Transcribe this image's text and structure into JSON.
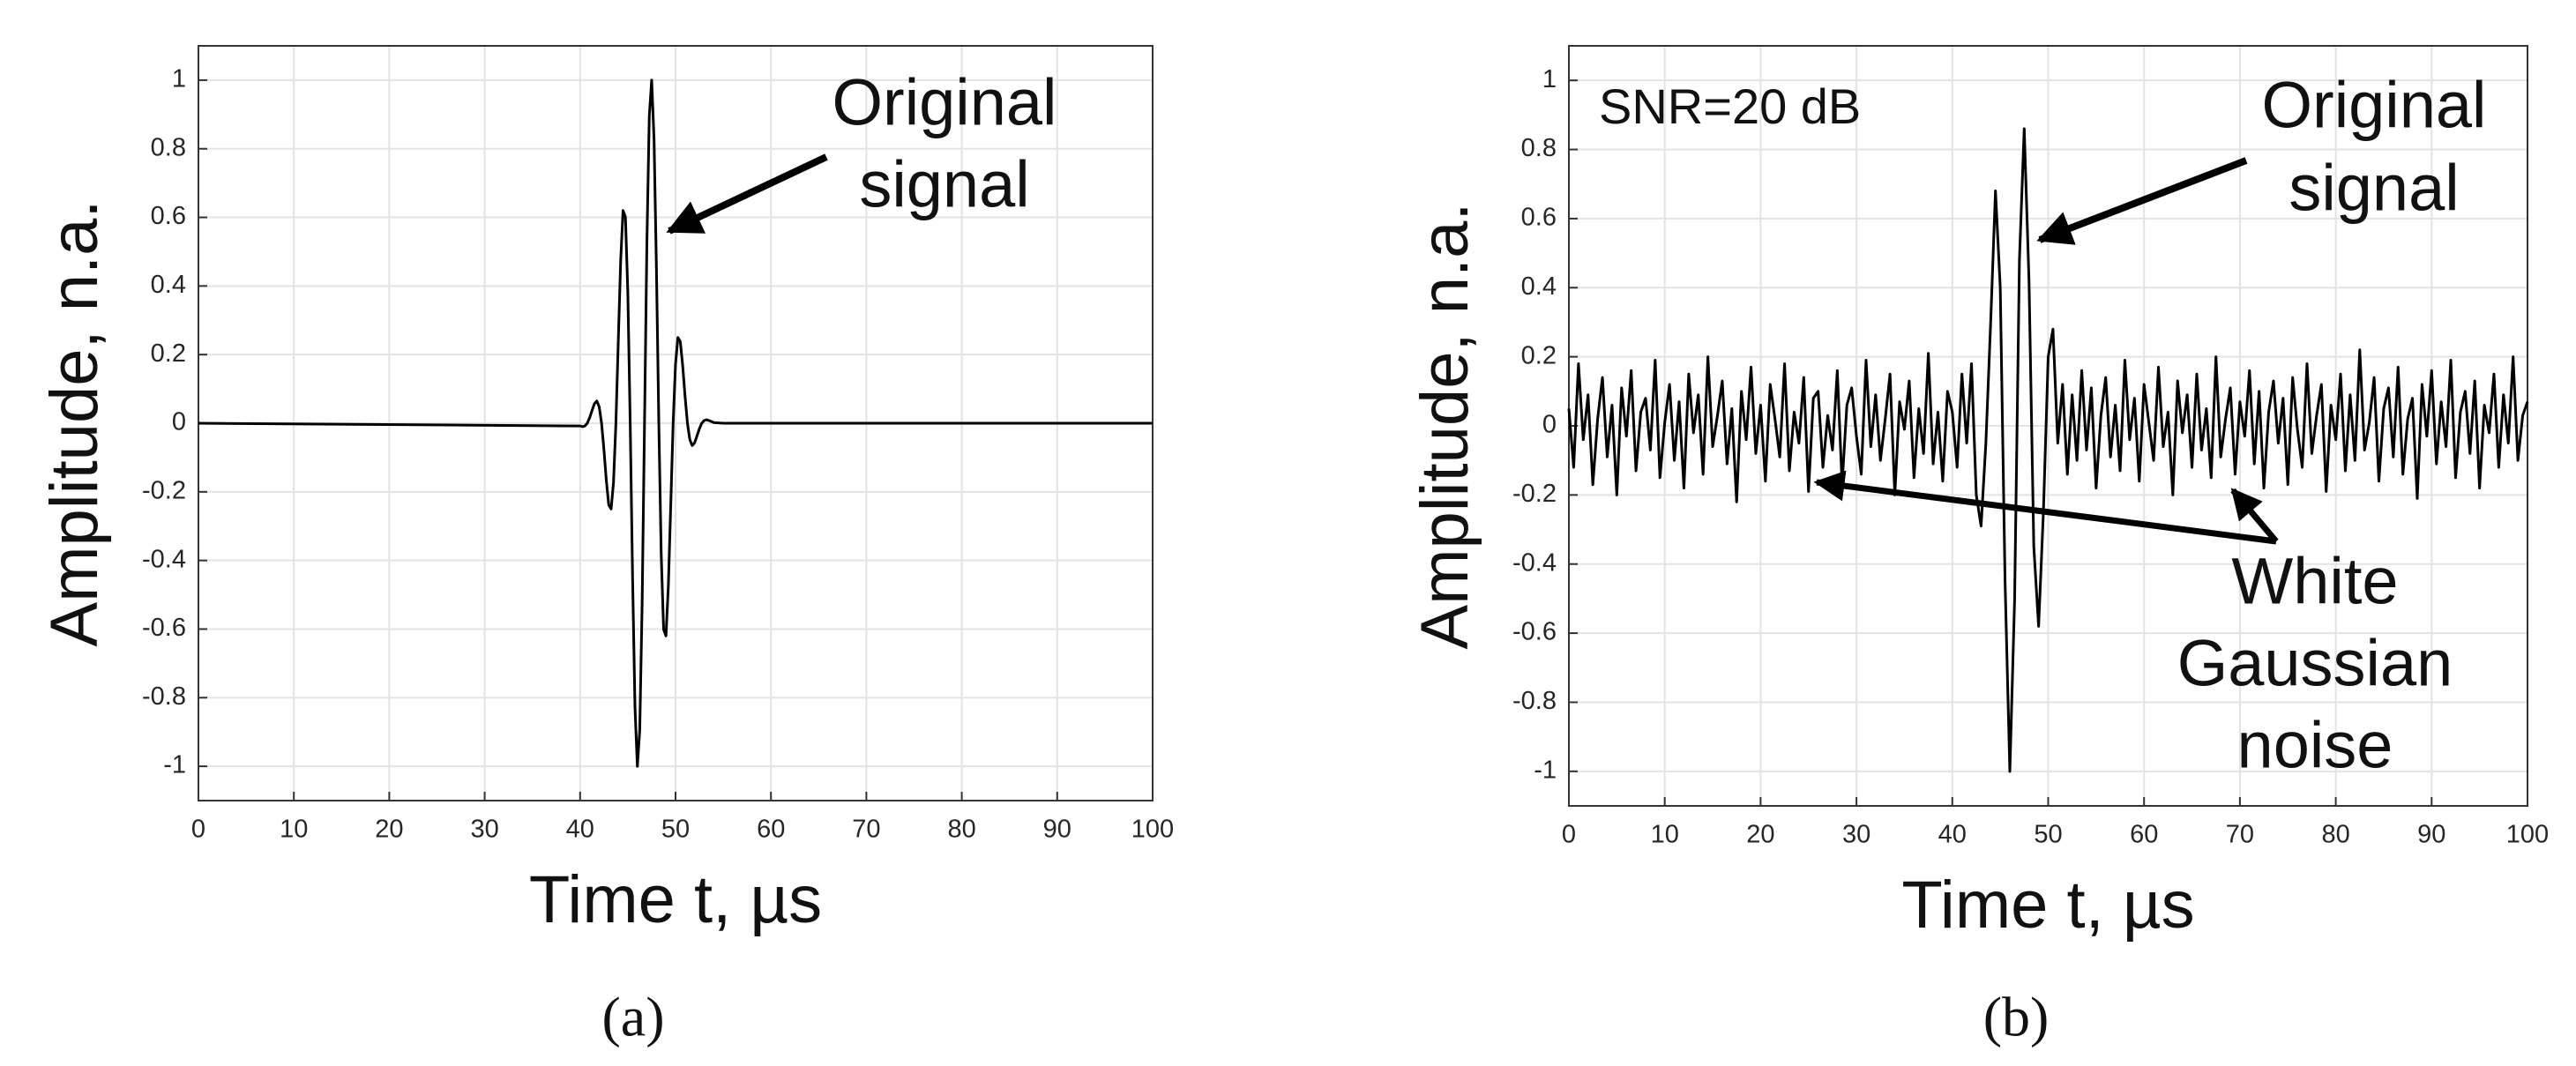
{
  "chart_data": [
    {
      "type": "line",
      "panel_label": "(a)",
      "xlabel": "Time t, µs",
      "ylabel": "Amplitude, n.a.",
      "annotation": [
        "Original",
        "signal"
      ],
      "xlim": [
        0,
        100
      ],
      "ylim": [
        -1.1,
        1.1
      ],
      "xticks": [
        0,
        10,
        20,
        30,
        40,
        50,
        60,
        70,
        80,
        90,
        100
      ],
      "yticks": [
        -1,
        -0.8,
        -0.6,
        -0.4,
        -0.2,
        0,
        0.2,
        0.4,
        0.6,
        0.8,
        1
      ],
      "grid": true,
      "color": "#000000",
      "x": [
        0,
        40,
        40.25,
        40.5,
        40.75,
        41,
        41.25,
        41.5,
        41.75,
        42,
        42.25,
        42.5,
        42.75,
        43,
        43.25,
        43.5,
        43.75,
        44,
        44.25,
        44.5,
        44.75,
        45,
        45.25,
        45.5,
        45.75,
        46,
        46.25,
        46.5,
        46.75,
        47,
        47.25,
        47.5,
        47.75,
        48,
        48.25,
        48.5,
        48.75,
        49,
        49.25,
        49.5,
        49.75,
        50,
        50.25,
        50.5,
        50.75,
        51,
        51.25,
        51.5,
        51.75,
        52,
        52.25,
        52.5,
        52.75,
        53,
        53.25,
        53.5,
        53.75,
        54,
        55,
        100
      ],
      "values": [
        0,
        -0.008,
        -0.01,
        -0.008,
        0,
        0.016,
        0.037,
        0.057,
        0.065,
        0.048,
        0,
        -0.078,
        -0.168,
        -0.238,
        -0.25,
        -0.173,
        0,
        0.238,
        0.473,
        0.62,
        0.601,
        0.383,
        0,
        -0.45,
        -0.827,
        -1,
        -0.895,
        -0.527,
        0,
        0.527,
        0.895,
        1,
        0.827,
        0.45,
        0,
        -0.383,
        -0.601,
        -0.62,
        -0.473,
        -0.238,
        0,
        0.173,
        0.25,
        0.238,
        0.168,
        0.078,
        0,
        -0.048,
        -0.065,
        -0.057,
        -0.037,
        -0.016,
        0,
        0.008,
        0.01,
        0.008,
        0.005,
        0.002,
        0,
        0
      ]
    },
    {
      "type": "line",
      "panel_label": "(b)",
      "xlabel": "Time t, µs",
      "ylabel": "Amplitude, n.a.",
      "annotation": [
        "Original",
        "signal"
      ],
      "snr_label": "SNR=20 dB",
      "noise_annotation": [
        "White",
        "Gaussian",
        "noise"
      ],
      "xlim": [
        0,
        100
      ],
      "ylim": [
        -1.1,
        1.1
      ],
      "xticks": [
        0,
        10,
        20,
        30,
        40,
        50,
        60,
        70,
        80,
        90,
        100
      ],
      "yticks": [
        -1,
        -0.8,
        -0.6,
        -0.4,
        -0.2,
        0,
        0.2,
        0.4,
        0.6,
        0.8,
        1
      ],
      "grid": true,
      "color": "#000000",
      "x": [
        0,
        0.5,
        1,
        1.5,
        2,
        2.5,
        3,
        3.5,
        4,
        4.5,
        5,
        5.5,
        6,
        6.5,
        7,
        7.5,
        8,
        8.5,
        9,
        9.5,
        10,
        10.5,
        11,
        11.5,
        12,
        12.5,
        13,
        13.5,
        14,
        14.5,
        15,
        15.5,
        16,
        16.5,
        17,
        17.5,
        18,
        18.5,
        19,
        19.5,
        20,
        20.5,
        21,
        21.5,
        22,
        22.5,
        23,
        23.5,
        24,
        24.5,
        25,
        25.5,
        26,
        26.5,
        27,
        27.5,
        28,
        28.5,
        29,
        29.5,
        30,
        30.5,
        31,
        31.5,
        32,
        32.5,
        33,
        33.5,
        34,
        34.5,
        35,
        35.5,
        36,
        36.5,
        37,
        37.5,
        38,
        38.5,
        39,
        39.5,
        40,
        40.5,
        41,
        41.5,
        42,
        42.5,
        43,
        43.5,
        44,
        44.5,
        45,
        45.5,
        46,
        46.5,
        47,
        47.5,
        48,
        48.5,
        49,
        49.5,
        50,
        50.5,
        51,
        51.5,
        52,
        52.5,
        53,
        53.5,
        54,
        54.5,
        55,
        55.5,
        56,
        56.5,
        57,
        57.5,
        58,
        58.5,
        59,
        59.5,
        60,
        60.5,
        61,
        61.5,
        62,
        62.5,
        63,
        63.5,
        64,
        64.5,
        65,
        65.5,
        66,
        66.5,
        67,
        67.5,
        68,
        68.5,
        69,
        69.5,
        70,
        70.5,
        71,
        71.5,
        72,
        72.5,
        73,
        73.5,
        74,
        74.5,
        75,
        75.5,
        76,
        76.5,
        77,
        77.5,
        78,
        78.5,
        79,
        79.5,
        80,
        80.5,
        81,
        81.5,
        82,
        82.5,
        83,
        83.5,
        84,
        84.5,
        85,
        85.5,
        86,
        86.5,
        87,
        87.5,
        88,
        88.5,
        89,
        89.5,
        90,
        90.5,
        91,
        91.5,
        92,
        92.5,
        93,
        93.5,
        94,
        94.5,
        95,
        95.5,
        96,
        96.5,
        97,
        97.5,
        98,
        98.5,
        99,
        99.5,
        100
      ],
      "values": [
        0.05,
        -0.12,
        0.18,
        -0.04,
        0.09,
        -0.17,
        0.02,
        0.14,
        -0.09,
        0.06,
        -0.2,
        0.11,
        -0.03,
        0.16,
        -0.13,
        0.04,
        0.08,
        -0.07,
        0.19,
        -0.15,
        0.01,
        0.12,
        -0.1,
        0.07,
        -0.18,
        0.15,
        -0.02,
        0.09,
        -0.14,
        0.2,
        -0.06,
        0.03,
        0.13,
        -0.11,
        0.05,
        -0.22,
        0.1,
        -0.04,
        0.17,
        -0.08,
        0.06,
        -0.16,
        0.12,
        0.02,
        -0.09,
        0.18,
        -0.13,
        0.04,
        -0.05,
        0.14,
        -0.19,
        0.08,
        0.1,
        -0.12,
        0.03,
        -0.07,
        0.16,
        -0.17,
        0.06,
        0.11,
        -0.03,
        -0.14,
        0.19,
        -0.06,
        0.09,
        -0.1,
        0.02,
        0.15,
        -0.2,
        0.07,
        -0.01,
        0.13,
        -0.15,
        0.05,
        -0.08,
        0.21,
        -0.11,
        0.04,
        -0.16,
        0.1,
        0.04,
        -0.12,
        0.15,
        -0.05,
        0.18,
        -0.2,
        -0.29,
        -0.05,
        0.3,
        0.68,
        0.4,
        -0.45,
        -1,
        -0.5,
        0.48,
        0.86,
        0.42,
        -0.35,
        -0.58,
        -0.25,
        0.2,
        0.28,
        -0.05,
        0.12,
        -0.14,
        0.09,
        -0.1,
        0.16,
        -0.07,
        0.11,
        -0.18,
        0.03,
        0.14,
        -0.09,
        0.06,
        -0.13,
        0.19,
        -0.04,
        0.08,
        -0.16,
        0.12,
        0.01,
        -0.1,
        0.17,
        -0.06,
        0.04,
        -0.2,
        0.13,
        -0.02,
        0.09,
        -0.12,
        0.15,
        -0.07,
        0.05,
        -0.15,
        0.2,
        -0.09,
        0.02,
        0.11,
        -0.14,
        0.07,
        -0.03,
        0.16,
        -0.11,
        0.1,
        -0.18,
        0.04,
        0.13,
        -0.05,
        0.08,
        -0.17,
        0.14,
        -0.01,
        -0.12,
        0.18,
        -0.08,
        0.03,
        0.12,
        -0.19,
        0.06,
        -0.04,
        0.15,
        -0.13,
        0.09,
        -0.1,
        0.22,
        -0.07,
        0.01,
        0.14,
        -0.16,
        0.05,
        0.11,
        -0.09,
        0.17,
        -0.14,
        0.02,
        0.08,
        -0.21,
        0.12,
        -0.03,
        0.16,
        -0.11,
        0.07,
        -0.06,
        0.19,
        -0.15,
        0.04,
        0.1,
        -0.08,
        0.13,
        -0.18,
        0.06,
        -0.02,
        0.15,
        -0.12,
        0.09,
        -0.05,
        0.2,
        -0.1,
        0.03,
        0.07
      ]
    }
  ]
}
